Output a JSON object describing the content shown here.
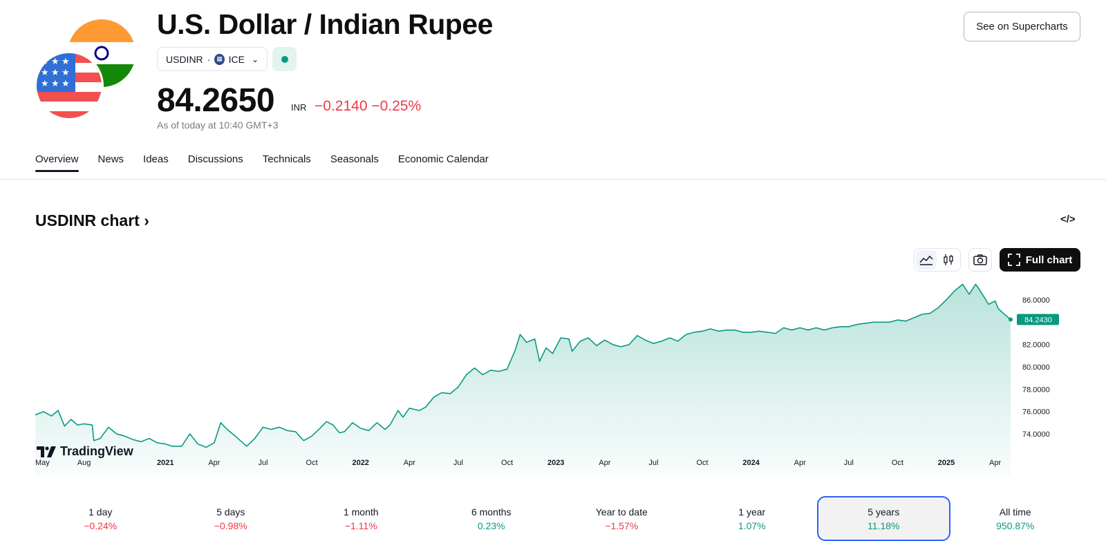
{
  "header": {
    "title": "U.S. Dollar / Indian Rupee",
    "symbol": "USDINR",
    "exchange": "ICE",
    "price": "84.2650",
    "currency": "INR",
    "change": "−0.2140",
    "change_pct": "−0.25%",
    "as_of": "As of today at 10:40 GMT+3",
    "supercharts_label": "See on Supercharts"
  },
  "tabs": [
    {
      "label": "Overview",
      "active": true
    },
    {
      "label": "News"
    },
    {
      "label": "Ideas"
    },
    {
      "label": "Discussions"
    },
    {
      "label": "Technicals"
    },
    {
      "label": "Seasonals"
    },
    {
      "label": "Economic Calendar"
    }
  ],
  "chart_section": {
    "title": "USDINR chart",
    "full_chart_label": "Full chart",
    "logo_text": "TradingView"
  },
  "periods": [
    {
      "label": "1 day",
      "value": "−0.24%",
      "dir": "neg"
    },
    {
      "label": "5 days",
      "value": "−0.98%",
      "dir": "neg"
    },
    {
      "label": "1 month",
      "value": "−1.11%",
      "dir": "neg"
    },
    {
      "label": "6 months",
      "value": "0.23%",
      "dir": "pos"
    },
    {
      "label": "Year to date",
      "value": "−1.57%",
      "dir": "neg"
    },
    {
      "label": "1 year",
      "value": "1.07%",
      "dir": "pos"
    },
    {
      "label": "5 years",
      "value": "11.18%",
      "dir": "pos",
      "selected": true
    },
    {
      "label": "All time",
      "value": "950.87%",
      "dir": "pos"
    }
  ],
  "colors": {
    "line": "#089981",
    "negative": "#f23645",
    "positive": "#089981",
    "selected_border": "#2962ff"
  },
  "chart_data": {
    "type": "area",
    "title": "USDINR chart",
    "xlabel": "",
    "ylabel": "",
    "ylim": [
      72.8,
      87.5
    ],
    "y_ticks": [
      "86.0000",
      "84.0000",
      "82.0000",
      "80.0000",
      "78.0000",
      "76.0000",
      "74.0000"
    ],
    "y_tick_values": [
      86,
      84,
      82,
      80,
      78,
      76,
      74
    ],
    "last_value_label": "84.2430",
    "last_value": 84.243,
    "x_ticks": [
      {
        "label": "May",
        "t": 0,
        "bold": false
      },
      {
        "label": "Aug",
        "t": 3,
        "bold": false
      },
      {
        "label": "2021",
        "t": 8,
        "bold": true
      },
      {
        "label": "Apr",
        "t": 11,
        "bold": false
      },
      {
        "label": "Jul",
        "t": 14,
        "bold": false
      },
      {
        "label": "Oct",
        "t": 17,
        "bold": false
      },
      {
        "label": "2022",
        "t": 20,
        "bold": true
      },
      {
        "label": "Apr",
        "t": 23,
        "bold": false
      },
      {
        "label": "Jul",
        "t": 26,
        "bold": false
      },
      {
        "label": "Oct",
        "t": 29,
        "bold": false
      },
      {
        "label": "2023",
        "t": 32,
        "bold": true
      },
      {
        "label": "Apr",
        "t": 35,
        "bold": false
      },
      {
        "label": "Jul",
        "t": 38,
        "bold": false
      },
      {
        "label": "Oct",
        "t": 41,
        "bold": false
      },
      {
        "label": "2024",
        "t": 44,
        "bold": true
      },
      {
        "label": "Apr",
        "t": 47,
        "bold": false
      },
      {
        "label": "Jul",
        "t": 50,
        "bold": false
      },
      {
        "label": "Oct",
        "t": 53,
        "bold": false
      },
      {
        "label": "2025",
        "t": 56,
        "bold": true
      },
      {
        "label": "Apr",
        "t": 59,
        "bold": false
      }
    ],
    "t_max": 59.95,
    "series": [
      {
        "name": "USDINR",
        "points": [
          [
            0,
            75.7
          ],
          [
            0.5,
            76.0
          ],
          [
            1,
            75.6
          ],
          [
            1.4,
            76.1
          ],
          [
            1.8,
            74.7
          ],
          [
            2.2,
            75.3
          ],
          [
            2.6,
            74.8
          ],
          [
            3,
            74.9
          ],
          [
            3.5,
            74.8
          ],
          [
            3.6,
            73.4
          ],
          [
            4,
            73.6
          ],
          [
            4.5,
            74.6
          ],
          [
            5,
            74.0
          ],
          [
            5.5,
            73.8
          ],
          [
            6,
            73.5
          ],
          [
            6.5,
            73.3
          ],
          [
            7,
            73.6
          ],
          [
            7.5,
            73.2
          ],
          [
            8,
            73.1
          ],
          [
            8.4,
            72.9
          ],
          [
            9,
            72.9
          ],
          [
            9.5,
            74.0
          ],
          [
            10,
            73.1
          ],
          [
            10.5,
            72.8
          ],
          [
            11,
            73.2
          ],
          [
            11.4,
            75.0
          ],
          [
            11.8,
            74.4
          ],
          [
            12.3,
            73.8
          ],
          [
            12.6,
            73.4
          ],
          [
            13,
            72.9
          ],
          [
            13.5,
            73.6
          ],
          [
            14,
            74.6
          ],
          [
            14.5,
            74.4
          ],
          [
            15,
            74.6
          ],
          [
            15.5,
            74.3
          ],
          [
            16,
            74.2
          ],
          [
            16.5,
            73.4
          ],
          [
            17,
            73.8
          ],
          [
            17.5,
            74.5
          ],
          [
            17.9,
            75.1
          ],
          [
            18.3,
            74.8
          ],
          [
            18.7,
            74.1
          ],
          [
            19,
            74.2
          ],
          [
            19.5,
            75.0
          ],
          [
            20,
            74.5
          ],
          [
            20.5,
            74.3
          ],
          [
            21,
            75.0
          ],
          [
            21.5,
            74.4
          ],
          [
            21.8,
            74.8
          ],
          [
            22.3,
            76.1
          ],
          [
            22.6,
            75.5
          ],
          [
            23,
            76.3
          ],
          [
            23.6,
            76.1
          ],
          [
            24,
            76.4
          ],
          [
            24.5,
            77.3
          ],
          [
            25,
            77.7
          ],
          [
            25.5,
            77.6
          ],
          [
            26,
            78.2
          ],
          [
            26.5,
            79.3
          ],
          [
            27,
            79.9
          ],
          [
            27.5,
            79.3
          ],
          [
            28,
            79.7
          ],
          [
            28.5,
            79.6
          ],
          [
            29,
            79.8
          ],
          [
            29.5,
            81.5
          ],
          [
            29.8,
            82.9
          ],
          [
            30.2,
            82.2
          ],
          [
            30.7,
            82.5
          ],
          [
            31,
            80.5
          ],
          [
            31.4,
            81.7
          ],
          [
            31.8,
            81.2
          ],
          [
            32.3,
            82.6
          ],
          [
            32.8,
            82.5
          ],
          [
            33,
            81.4
          ],
          [
            33.5,
            82.3
          ],
          [
            34,
            82.6
          ],
          [
            34.5,
            81.9
          ],
          [
            35,
            82.4
          ],
          [
            35.5,
            82.0
          ],
          [
            36,
            81.8
          ],
          [
            36.5,
            82.0
          ],
          [
            37,
            82.8
          ],
          [
            37.5,
            82.4
          ],
          [
            38,
            82.1
          ],
          [
            38.5,
            82.3
          ],
          [
            39,
            82.6
          ],
          [
            39.5,
            82.3
          ],
          [
            40,
            82.9
          ],
          [
            40.5,
            83.1
          ],
          [
            41,
            83.2
          ],
          [
            41.5,
            83.4
          ],
          [
            42,
            83.2
          ],
          [
            42.5,
            83.3
          ],
          [
            43,
            83.3
          ],
          [
            43.5,
            83.1
          ],
          [
            44,
            83.1
          ],
          [
            44.5,
            83.2
          ],
          [
            45,
            83.1
          ],
          [
            45.5,
            83.0
          ],
          [
            46,
            83.5
          ],
          [
            46.5,
            83.3
          ],
          [
            47,
            83.5
          ],
          [
            47.5,
            83.3
          ],
          [
            48,
            83.5
          ],
          [
            48.5,
            83.3
          ],
          [
            49,
            83.5
          ],
          [
            49.5,
            83.6
          ],
          [
            50,
            83.6
          ],
          [
            50.5,
            83.8
          ],
          [
            51,
            83.9
          ],
          [
            51.5,
            84.0
          ],
          [
            52,
            84.0
          ],
          [
            52.5,
            84.0
          ],
          [
            53,
            84.2
          ],
          [
            53.5,
            84.1
          ],
          [
            54,
            84.4
          ],
          [
            54.5,
            84.7
          ],
          [
            55,
            84.8
          ],
          [
            55.5,
            85.3
          ],
          [
            56,
            86.0
          ],
          [
            56.5,
            86.8
          ],
          [
            57,
            87.4
          ],
          [
            57.4,
            86.5
          ],
          [
            57.8,
            87.4
          ],
          [
            58,
            87.0
          ],
          [
            58.3,
            86.3
          ],
          [
            58.6,
            85.6
          ],
          [
            59,
            85.9
          ],
          [
            59.2,
            85.2
          ],
          [
            59.5,
            84.8
          ],
          [
            59.95,
            84.243
          ]
        ]
      }
    ]
  }
}
